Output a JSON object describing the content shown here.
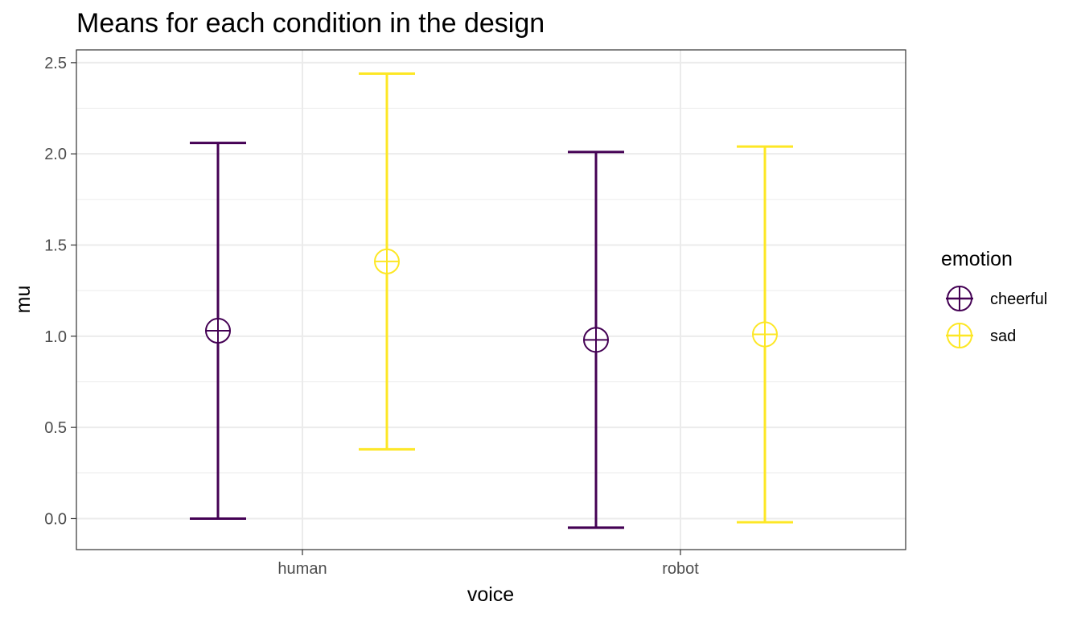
{
  "chart_data": {
    "type": "errorbar",
    "title": "Means for each condition in the design",
    "xlabel": "voice",
    "ylabel": "mu",
    "categories": [
      "human",
      "robot"
    ],
    "ylim": [
      -0.17,
      2.57
    ],
    "yticks": [
      0.0,
      0.5,
      1.0,
      1.5,
      2.0,
      2.5
    ],
    "ytick_labels": [
      "0.0",
      "0.5",
      "1.0",
      "1.5",
      "2.0",
      "2.5"
    ],
    "grid": true,
    "legend": {
      "title": "emotion",
      "position": "right"
    },
    "series": [
      {
        "name": "cheerful",
        "color": "#440154",
        "mean": [
          1.03,
          0.98
        ],
        "lower": [
          0.0,
          -0.05
        ],
        "upper": [
          2.06,
          2.01
        ]
      },
      {
        "name": "sad",
        "color": "#FDE725",
        "mean": [
          1.41,
          1.01
        ],
        "lower": [
          0.38,
          -0.02
        ],
        "upper": [
          2.44,
          2.04
        ]
      }
    ]
  }
}
